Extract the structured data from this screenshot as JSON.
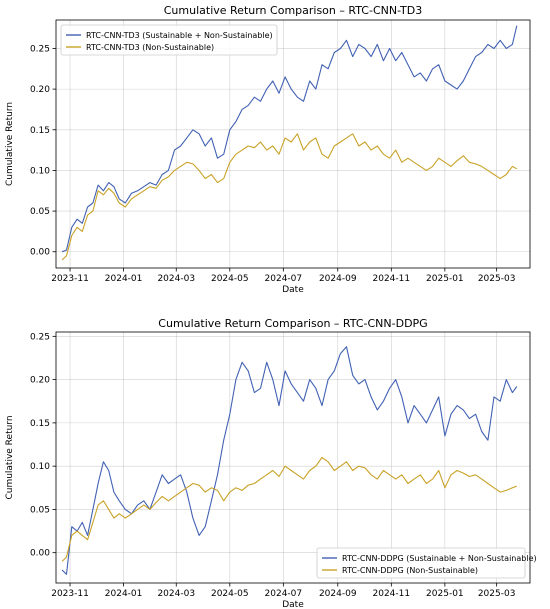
{
  "chart_data": [
    {
      "type": "line",
      "title": "Cumulative Return Comparison – RTC-CNN-TD3",
      "xlabel": "Date",
      "ylabel": "Cumulative Return",
      "x_range": [
        "2023-10-16",
        "2025-04-08"
      ],
      "ylim": [
        -0.02,
        0.285
      ],
      "x_ticks": [
        "2023-11",
        "2024-01",
        "2024-03",
        "2024-05",
        "2024-07",
        "2024-09",
        "2024-11",
        "2025-01",
        "2025-03"
      ],
      "y_ticks": [
        0.0,
        0.05,
        0.1,
        0.15,
        0.2,
        0.25
      ],
      "y_tick_labels": [
        "0.00",
        "0.05",
        "0.10",
        "0.15",
        "0.20",
        "0.25"
      ],
      "grid": true,
      "legend_position": "upper left",
      "series": [
        {
          "name": "RTC-CNN-TD3 (Sustainable + Non-Sustainable)",
          "color": "#4161b3",
          "x": [
            "2023-10-23",
            "2023-10-28",
            "2023-11-03",
            "2023-11-09",
            "2023-11-15",
            "2023-11-21",
            "2023-11-27",
            "2023-12-03",
            "2023-12-09",
            "2023-12-15",
            "2023-12-21",
            "2023-12-27",
            "2024-01-03",
            "2024-01-10",
            "2024-01-17",
            "2024-01-24",
            "2024-01-31",
            "2024-02-07",
            "2024-02-14",
            "2024-02-21",
            "2024-02-28",
            "2024-03-06",
            "2024-03-13",
            "2024-03-20",
            "2024-03-27",
            "2024-04-03",
            "2024-04-10",
            "2024-04-17",
            "2024-04-24",
            "2024-05-01",
            "2024-05-08",
            "2024-05-15",
            "2024-05-22",
            "2024-05-29",
            "2024-06-05",
            "2024-06-12",
            "2024-06-19",
            "2024-06-26",
            "2024-07-03",
            "2024-07-10",
            "2024-07-17",
            "2024-07-24",
            "2024-07-31",
            "2024-08-07",
            "2024-08-14",
            "2024-08-21",
            "2024-08-28",
            "2024-09-04",
            "2024-09-11",
            "2024-09-18",
            "2024-09-25",
            "2024-10-02",
            "2024-10-09",
            "2024-10-16",
            "2024-10-23",
            "2024-10-30",
            "2024-11-06",
            "2024-11-13",
            "2024-11-20",
            "2024-11-27",
            "2024-12-04",
            "2024-12-11",
            "2024-12-18",
            "2024-12-25",
            "2025-01-01",
            "2025-01-08",
            "2025-01-15",
            "2025-01-22",
            "2025-01-29",
            "2025-02-05",
            "2025-02-12",
            "2025-02-19",
            "2025-02-26",
            "2025-03-05",
            "2025-03-12",
            "2025-03-19",
            "2025-03-24"
          ],
          "values": [
            0.0,
            0.002,
            0.03,
            0.04,
            0.035,
            0.055,
            0.06,
            0.082,
            0.075,
            0.085,
            0.08,
            0.065,
            0.06,
            0.072,
            0.075,
            0.08,
            0.085,
            0.082,
            0.095,
            0.1,
            0.125,
            0.13,
            0.14,
            0.15,
            0.145,
            0.13,
            0.14,
            0.115,
            0.12,
            0.15,
            0.16,
            0.175,
            0.18,
            0.19,
            0.185,
            0.2,
            0.21,
            0.195,
            0.215,
            0.2,
            0.19,
            0.185,
            0.21,
            0.2,
            0.23,
            0.225,
            0.245,
            0.25,
            0.26,
            0.24,
            0.255,
            0.25,
            0.24,
            0.255,
            0.235,
            0.25,
            0.235,
            0.245,
            0.23,
            0.215,
            0.22,
            0.21,
            0.225,
            0.23,
            0.21,
            0.205,
            0.2,
            0.21,
            0.225,
            0.24,
            0.245,
            0.255,
            0.25,
            0.26,
            0.25,
            0.255,
            0.278
          ]
        },
        {
          "name": "RTC-CNN-TD3 (Non-Sustainable)",
          "color": "#c9a227",
          "x": [
            "2023-10-23",
            "2023-10-28",
            "2023-11-03",
            "2023-11-09",
            "2023-11-15",
            "2023-11-21",
            "2023-11-27",
            "2023-12-03",
            "2023-12-09",
            "2023-12-15",
            "2023-12-21",
            "2023-12-27",
            "2024-01-03",
            "2024-01-10",
            "2024-01-17",
            "2024-01-24",
            "2024-01-31",
            "2024-02-07",
            "2024-02-14",
            "2024-02-21",
            "2024-02-28",
            "2024-03-06",
            "2024-03-13",
            "2024-03-20",
            "2024-03-27",
            "2024-04-03",
            "2024-04-10",
            "2024-04-17",
            "2024-04-24",
            "2024-05-01",
            "2024-05-08",
            "2024-05-15",
            "2024-05-22",
            "2024-05-29",
            "2024-06-05",
            "2024-06-12",
            "2024-06-19",
            "2024-06-26",
            "2024-07-03",
            "2024-07-10",
            "2024-07-17",
            "2024-07-24",
            "2024-07-31",
            "2024-08-07",
            "2024-08-14",
            "2024-08-21",
            "2024-08-28",
            "2024-09-04",
            "2024-09-11",
            "2024-09-18",
            "2024-09-25",
            "2024-10-02",
            "2024-10-09",
            "2024-10-16",
            "2024-10-23",
            "2024-10-30",
            "2024-11-06",
            "2024-11-13",
            "2024-11-20",
            "2024-11-27",
            "2024-12-04",
            "2024-12-11",
            "2024-12-18",
            "2024-12-25",
            "2025-01-01",
            "2025-01-08",
            "2025-01-15",
            "2025-01-22",
            "2025-01-29",
            "2025-02-05",
            "2025-02-12",
            "2025-02-19",
            "2025-02-26",
            "2025-03-05",
            "2025-03-12",
            "2025-03-19",
            "2025-03-24"
          ],
          "values": [
            -0.01,
            -0.005,
            0.02,
            0.03,
            0.025,
            0.045,
            0.05,
            0.075,
            0.07,
            0.078,
            0.072,
            0.06,
            0.055,
            0.065,
            0.07,
            0.075,
            0.08,
            0.078,
            0.088,
            0.092,
            0.1,
            0.105,
            0.11,
            0.108,
            0.1,
            0.09,
            0.095,
            0.085,
            0.09,
            0.11,
            0.12,
            0.125,
            0.13,
            0.128,
            0.135,
            0.125,
            0.13,
            0.12,
            0.14,
            0.135,
            0.145,
            0.125,
            0.135,
            0.14,
            0.12,
            0.115,
            0.13,
            0.135,
            0.14,
            0.145,
            0.13,
            0.135,
            0.125,
            0.13,
            0.12,
            0.115,
            0.125,
            0.11,
            0.115,
            0.11,
            0.105,
            0.1,
            0.105,
            0.115,
            0.11,
            0.105,
            0.112,
            0.118,
            0.11,
            0.108,
            0.105,
            0.1,
            0.095,
            0.09,
            0.095,
            0.105,
            0.102
          ]
        }
      ]
    },
    {
      "type": "line",
      "title": "Cumulative Return Comparison – RTC-CNN-DDPG",
      "xlabel": "Date",
      "ylabel": "Cumulative Return",
      "x_range": [
        "2023-10-16",
        "2025-04-08"
      ],
      "ylim": [
        -0.035,
        0.255
      ],
      "x_ticks": [
        "2023-11",
        "2024-01",
        "2024-03",
        "2024-05",
        "2024-07",
        "2024-09",
        "2024-11",
        "2025-01",
        "2025-03"
      ],
      "y_ticks": [
        0.0,
        0.05,
        0.1,
        0.15,
        0.2,
        0.25
      ],
      "y_tick_labels": [
        "0.00",
        "0.05",
        "0.10",
        "0.15",
        "0.20",
        "0.25"
      ],
      "grid": true,
      "legend_position": "lower right",
      "series": [
        {
          "name": "RTC-CNN-DDPG (Sustainable + Non-Sustainable)",
          "color": "#4161b3",
          "x": [
            "2023-10-23",
            "2023-10-28",
            "2023-11-03",
            "2023-11-09",
            "2023-11-15",
            "2023-11-21",
            "2023-11-27",
            "2023-12-03",
            "2023-12-09",
            "2023-12-15",
            "2023-12-21",
            "2023-12-27",
            "2024-01-03",
            "2024-01-10",
            "2024-01-17",
            "2024-01-24",
            "2024-01-31",
            "2024-02-07",
            "2024-02-14",
            "2024-02-21",
            "2024-02-28",
            "2024-03-06",
            "2024-03-13",
            "2024-03-20",
            "2024-03-27",
            "2024-04-03",
            "2024-04-10",
            "2024-04-17",
            "2024-04-24",
            "2024-05-01",
            "2024-05-08",
            "2024-05-15",
            "2024-05-22",
            "2024-05-29",
            "2024-06-05",
            "2024-06-12",
            "2024-06-19",
            "2024-06-26",
            "2024-07-03",
            "2024-07-10",
            "2024-07-17",
            "2024-07-24",
            "2024-07-31",
            "2024-08-07",
            "2024-08-14",
            "2024-08-21",
            "2024-08-28",
            "2024-09-04",
            "2024-09-11",
            "2024-09-18",
            "2024-09-25",
            "2024-10-02",
            "2024-10-09",
            "2024-10-16",
            "2024-10-23",
            "2024-10-30",
            "2024-11-06",
            "2024-11-13",
            "2024-11-20",
            "2024-11-27",
            "2024-12-04",
            "2024-12-11",
            "2024-12-18",
            "2024-12-25",
            "2025-01-01",
            "2025-01-08",
            "2025-01-15",
            "2025-01-22",
            "2025-01-29",
            "2025-02-05",
            "2025-02-12",
            "2025-02-19",
            "2025-02-26",
            "2025-03-05",
            "2025-03-12",
            "2025-03-19",
            "2025-03-24"
          ],
          "values": [
            -0.02,
            -0.025,
            0.03,
            0.025,
            0.035,
            0.02,
            0.05,
            0.08,
            0.105,
            0.095,
            0.07,
            0.06,
            0.05,
            0.045,
            0.055,
            0.06,
            0.05,
            0.07,
            0.09,
            0.08,
            0.085,
            0.09,
            0.07,
            0.04,
            0.02,
            0.03,
            0.06,
            0.09,
            0.13,
            0.16,
            0.2,
            0.22,
            0.21,
            0.185,
            0.19,
            0.22,
            0.2,
            0.17,
            0.21,
            0.195,
            0.185,
            0.175,
            0.2,
            0.19,
            0.17,
            0.2,
            0.21,
            0.23,
            0.238,
            0.205,
            0.195,
            0.2,
            0.18,
            0.165,
            0.175,
            0.19,
            0.2,
            0.18,
            0.15,
            0.17,
            0.16,
            0.15,
            0.165,
            0.18,
            0.135,
            0.16,
            0.17,
            0.165,
            0.155,
            0.16,
            0.14,
            0.13,
            0.18,
            0.175,
            0.2,
            0.185,
            0.192
          ]
        },
        {
          "name": "RTC-CNN-DDPG (Non-Sustainable)",
          "color": "#c9a227",
          "x": [
            "2023-10-23",
            "2023-10-28",
            "2023-11-03",
            "2023-11-09",
            "2023-11-15",
            "2023-11-21",
            "2023-11-27",
            "2023-12-03",
            "2023-12-09",
            "2023-12-15",
            "2023-12-21",
            "2023-12-27",
            "2024-01-03",
            "2024-01-10",
            "2024-01-17",
            "2024-01-24",
            "2024-01-31",
            "2024-02-07",
            "2024-02-14",
            "2024-02-21",
            "2024-02-28",
            "2024-03-06",
            "2024-03-13",
            "2024-03-20",
            "2024-03-27",
            "2024-04-03",
            "2024-04-10",
            "2024-04-17",
            "2024-04-24",
            "2024-05-01",
            "2024-05-08",
            "2024-05-15",
            "2024-05-22",
            "2024-05-29",
            "2024-06-05",
            "2024-06-12",
            "2024-06-19",
            "2024-06-26",
            "2024-07-03",
            "2024-07-10",
            "2024-07-17",
            "2024-07-24",
            "2024-07-31",
            "2024-08-07",
            "2024-08-14",
            "2024-08-21",
            "2024-08-28",
            "2024-09-04",
            "2024-09-11",
            "2024-09-18",
            "2024-09-25",
            "2024-10-02",
            "2024-10-09",
            "2024-10-16",
            "2024-10-23",
            "2024-10-30",
            "2024-11-06",
            "2024-11-13",
            "2024-11-20",
            "2024-11-27",
            "2024-12-04",
            "2024-12-11",
            "2024-12-18",
            "2024-12-25",
            "2025-01-01",
            "2025-01-08",
            "2025-01-15",
            "2025-01-22",
            "2025-01-29",
            "2025-02-05",
            "2025-02-12",
            "2025-02-19",
            "2025-02-26",
            "2025-03-05",
            "2025-03-12",
            "2025-03-19",
            "2025-03-24"
          ],
          "values": [
            -0.01,
            -0.005,
            0.02,
            0.025,
            0.02,
            0.015,
            0.035,
            0.055,
            0.06,
            0.05,
            0.04,
            0.045,
            0.04,
            0.045,
            0.05,
            0.055,
            0.05,
            0.058,
            0.065,
            0.06,
            0.065,
            0.07,
            0.075,
            0.08,
            0.078,
            0.07,
            0.075,
            0.072,
            0.06,
            0.07,
            0.075,
            0.072,
            0.078,
            0.08,
            0.085,
            0.09,
            0.095,
            0.088,
            0.1,
            0.095,
            0.09,
            0.085,
            0.095,
            0.1,
            0.11,
            0.105,
            0.095,
            0.1,
            0.105,
            0.095,
            0.1,
            0.098,
            0.09,
            0.085,
            0.095,
            0.09,
            0.085,
            0.09,
            0.08,
            0.085,
            0.09,
            0.08,
            0.085,
            0.095,
            0.075,
            0.09,
            0.095,
            0.092,
            0.088,
            0.09,
            0.085,
            0.08,
            0.075,
            0.07,
            0.072,
            0.075,
            0.077
          ]
        }
      ]
    }
  ]
}
